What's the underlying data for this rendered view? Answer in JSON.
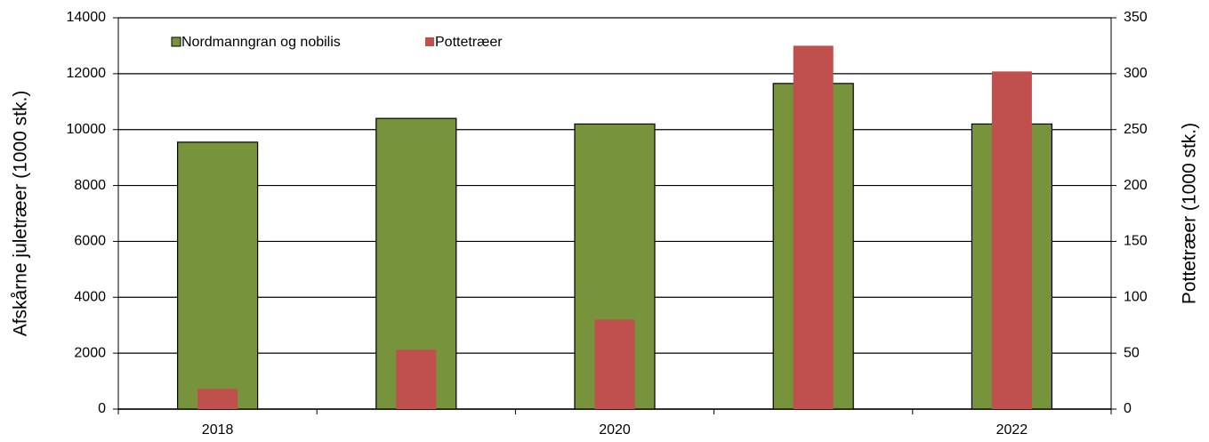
{
  "chart_data": {
    "type": "bar",
    "categories": [
      "2018",
      null,
      "2020",
      null,
      "2022"
    ],
    "y_label": "Afskårne juletræer (1000 stk.)",
    "y2_label": "Pottetræer (1000 stk.)",
    "series": [
      {
        "name": "Nordmanngran og nobilis",
        "color": "#77933c",
        "values": [
          9550,
          10400,
          10200,
          11650,
          10200
        ]
      },
      {
        "name": "Pottetræer",
        "color": "#c0504d",
        "axis": "y2",
        "values": [
          18,
          53,
          80,
          325,
          302
        ]
      }
    ],
    "ylim": [
      0,
      14000
    ],
    "yticks": [
      0,
      2000,
      4000,
      6000,
      8000,
      10000,
      12000,
      14000
    ],
    "y2lim": [
      0,
      350
    ],
    "y2ticks": [
      0,
      50,
      100,
      150,
      200,
      250,
      300,
      350
    ],
    "grid": true,
    "legend": "upper left"
  }
}
